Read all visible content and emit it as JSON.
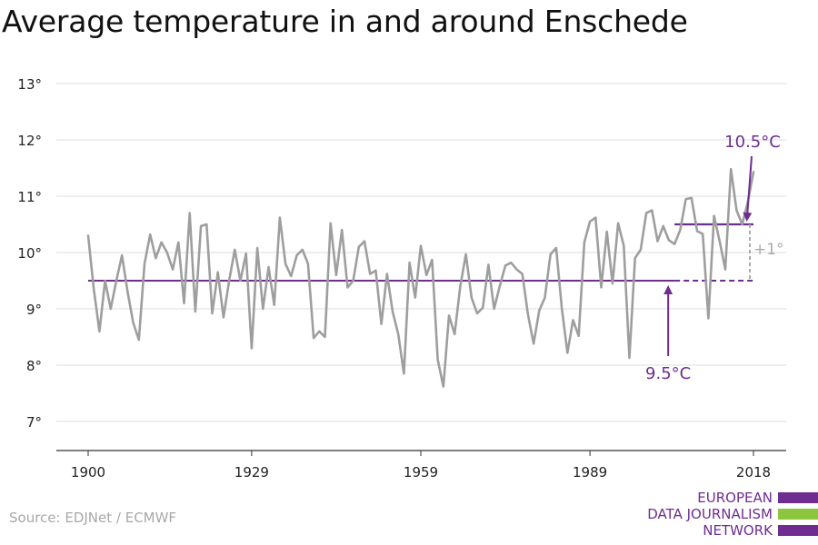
{
  "title": "Average temperature in and around Enschede",
  "source": "Source: EDJNet / ECMWF",
  "logo": {
    "lines": [
      "EUROPEAN",
      "DATA JOURNALISM",
      "NETWORK"
    ],
    "colors": {
      "text": "#6f2c91",
      "bar_purple": "#6f2c91",
      "bar_green": "#8cc63f"
    }
  },
  "colors": {
    "series": "#9e9e9e",
    "baseline": "#6f2c91",
    "grid": "#dddddd",
    "diff": "#aaaaaa"
  },
  "chart_data": {
    "type": "line",
    "title": "Average temperature in and around Enschede",
    "xlabel": "",
    "ylabel": "",
    "x_ticks": [
      "1900",
      "1929",
      "1959",
      "1989",
      "2018"
    ],
    "x_tick_values": [
      1900,
      1929,
      1959,
      1989,
      2018
    ],
    "y_ticks": [
      "7°",
      "8°",
      "9°",
      "10°",
      "11°",
      "12°",
      "13°"
    ],
    "y_tick_values": [
      7,
      8,
      9,
      10,
      11,
      12,
      13
    ],
    "xlim": [
      1900,
      2018
    ],
    "ylim": [
      6.5,
      13.2
    ],
    "grid": true,
    "series": [
      {
        "x": [
          1900,
          1901,
          1902,
          1903,
          1904,
          1905,
          1906,
          1907,
          1908,
          1909,
          1910,
          1911,
          1912,
          1913,
          1914,
          1915,
          1916,
          1917,
          1918,
          1919,
          1920,
          1921,
          1922,
          1923,
          1924,
          1925,
          1926,
          1927,
          1928,
          1929,
          1930,
          1931,
          1932,
          1933,
          1934,
          1935,
          1936,
          1937,
          1938,
          1939,
          1940,
          1941,
          1942,
          1943,
          1944,
          1945,
          1946,
          1947,
          1948,
          1949,
          1950,
          1951,
          1952,
          1953,
          1954,
          1955,
          1956,
          1957,
          1958,
          1959,
          1960,
          1961,
          1962,
          1963,
          1964,
          1965,
          1966,
          1967,
          1968,
          1969,
          1970,
          1971,
          1972,
          1973,
          1974,
          1975,
          1976,
          1977,
          1978,
          1979,
          1980,
          1981,
          1982,
          1983,
          1984,
          1985,
          1986,
          1987,
          1988,
          1989,
          1990,
          1991,
          1992,
          1993,
          1994,
          1995,
          1996,
          1997,
          1998,
          1999,
          2000,
          2001,
          2002,
          2003,
          2004,
          2005,
          2006,
          2007,
          2008,
          2009,
          2010,
          2011,
          2012,
          2013,
          2014,
          2015,
          2016,
          2017,
          2018
        ],
        "values": [
          10.3,
          9.35,
          8.6,
          9.5,
          9.0,
          9.5,
          9.95,
          9.3,
          8.75,
          8.45,
          9.8,
          10.32,
          9.9,
          10.18,
          10.0,
          9.7,
          10.18,
          9.1,
          10.7,
          8.95,
          10.47,
          10.5,
          8.92,
          9.65,
          8.85,
          9.5,
          10.05,
          9.5,
          9.98,
          8.3,
          10.08,
          9.0,
          9.74,
          9.07,
          10.62,
          9.8,
          9.58,
          9.95,
          10.05,
          9.8,
          8.48,
          8.6,
          8.5,
          10.52,
          9.6,
          10.4,
          9.38,
          9.5,
          10.1,
          10.2,
          9.62,
          9.68,
          8.73,
          9.62,
          8.95,
          8.55,
          7.85,
          9.82,
          9.2,
          10.12,
          9.6,
          9.87,
          8.1,
          7.62,
          8.88,
          8.55,
          9.4,
          9.97,
          9.2,
          8.92,
          9.02,
          9.78,
          9.0,
          9.4,
          9.77,
          9.82,
          9.7,
          9.62,
          8.9,
          8.38,
          8.97,
          9.2,
          9.97,
          10.08,
          9.02,
          8.22,
          8.8,
          8.52,
          10.18,
          10.55,
          10.62,
          9.38,
          10.37,
          9.45,
          10.52,
          10.12,
          8.13,
          9.9,
          10.05,
          10.7,
          10.75,
          10.2,
          10.47,
          10.22,
          10.15,
          10.4,
          10.95,
          10.97,
          10.38,
          10.33,
          8.83,
          10.65,
          10.2,
          9.7,
          11.48,
          10.75,
          10.5,
          10.9,
          11.43
        ]
      }
    ],
    "reference_lines": [
      {
        "label": "9.5°C",
        "value": 9.5,
        "from": 1900,
        "to": 2018,
        "solid_until": 2004
      },
      {
        "label": "10.5°C",
        "value": 10.5,
        "from": 2004,
        "to": 2018
      }
    ],
    "difference_label": "+1°",
    "annotation_year_9_5": 2004
  }
}
